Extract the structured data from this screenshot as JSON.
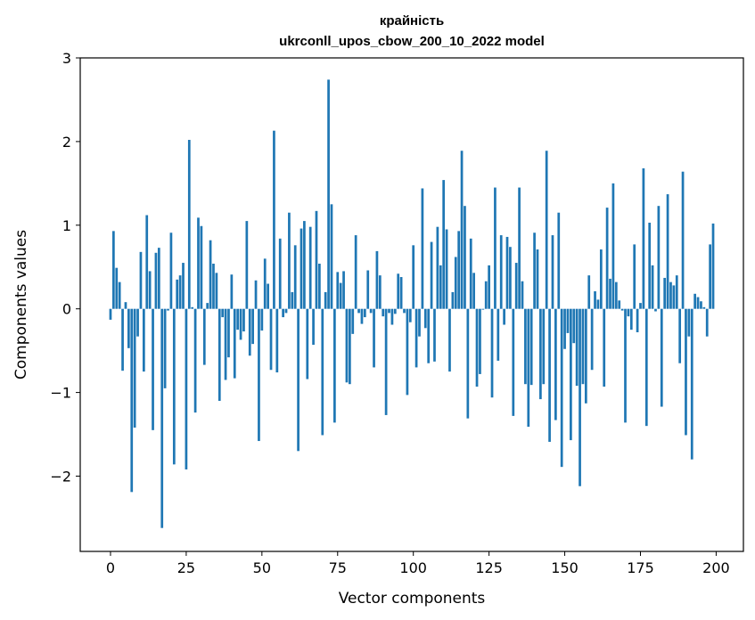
{
  "chart_data": {
    "type": "bar",
    "title": "крайність",
    "subtitle": "ukrconll_upos_cbow_200_10_2022 model",
    "xlabel": "Vector components",
    "ylabel": "Components values",
    "xlim": [
      -10,
      209
    ],
    "ylim": [
      -2.9,
      3.0
    ],
    "xticks": [
      0,
      25,
      50,
      75,
      100,
      125,
      150,
      175,
      200
    ],
    "xtick_labels": [
      "0",
      "25",
      "50",
      "75",
      "100",
      "125",
      "150",
      "175",
      "200"
    ],
    "yticks": [
      -2,
      -1,
      0,
      1,
      2,
      3
    ],
    "ytick_labels": [
      "−2",
      "−1",
      "0",
      "1",
      "2",
      "3"
    ],
    "grid": false,
    "bar_color": "#1f77b4",
    "x": [
      0,
      1,
      2,
      3,
      4,
      5,
      6,
      7,
      8,
      9,
      10,
      11,
      12,
      13,
      14,
      15,
      16,
      17,
      18,
      19,
      20,
      21,
      22,
      23,
      24,
      25,
      26,
      27,
      28,
      29,
      30,
      31,
      32,
      33,
      34,
      35,
      36,
      37,
      38,
      39,
      40,
      41,
      42,
      43,
      44,
      45,
      46,
      47,
      48,
      49,
      50,
      51,
      52,
      53,
      54,
      55,
      56,
      57,
      58,
      59,
      60,
      61,
      62,
      63,
      64,
      65,
      66,
      67,
      68,
      69,
      70,
      71,
      72,
      73,
      74,
      75,
      76,
      77,
      78,
      79,
      80,
      81,
      82,
      83,
      84,
      85,
      86,
      87,
      88,
      89,
      90,
      91,
      92,
      93,
      94,
      95,
      96,
      97,
      98,
      99,
      100,
      101,
      102,
      103,
      104,
      105,
      106,
      107,
      108,
      109,
      110,
      111,
      112,
      113,
      114,
      115,
      116,
      117,
      118,
      119,
      120,
      121,
      122,
      123,
      124,
      125,
      126,
      127,
      128,
      129,
      130,
      131,
      132,
      133,
      134,
      135,
      136,
      137,
      138,
      139,
      140,
      141,
      142,
      143,
      144,
      145,
      146,
      147,
      148,
      149,
      150,
      151,
      152,
      153,
      154,
      155,
      156,
      157,
      158,
      159,
      160,
      161,
      162,
      163,
      164,
      165,
      166,
      167,
      168,
      169,
      170,
      171,
      172,
      173,
      174,
      175,
      176,
      177,
      178,
      179,
      180,
      181,
      182,
      183,
      184,
      185,
      186,
      187,
      188,
      189,
      190,
      191,
      192,
      193,
      194,
      195,
      196,
      197,
      198,
      199
    ],
    "values": [
      -0.13,
      0.93,
      0.49,
      0.32,
      -0.74,
      0.08,
      -0.47,
      -2.19,
      -1.42,
      -0.33,
      0.68,
      -0.75,
      1.12,
      0.45,
      -1.45,
      0.67,
      0.73,
      -2.62,
      -0.95,
      -0.02,
      0.91,
      -1.86,
      0.35,
      0.4,
      0.55,
      -1.92,
      2.02,
      0.02,
      -1.24,
      1.09,
      0.99,
      -0.67,
      0.07,
      0.82,
      0.54,
      0.43,
      -1.1,
      -0.1,
      -0.85,
      -0.58,
      0.41,
      -0.83,
      -0.25,
      -0.37,
      -0.27,
      1.05,
      -0.56,
      -0.42,
      0.34,
      -1.58,
      -0.26,
      0.6,
      0.3,
      -0.73,
      2.13,
      -0.76,
      0.84,
      -0.1,
      -0.05,
      1.15,
      0.2,
      0.76,
      -1.7,
      0.96,
      1.05,
      -0.84,
      0.98,
      -0.43,
      1.17,
      0.54,
      -1.51,
      0.2,
      2.74,
      1.25,
      -1.36,
      0.44,
      0.31,
      0.45,
      -0.88,
      -0.9,
      -0.3,
      0.88,
      -0.05,
      -0.18,
      -0.1,
      0.46,
      -0.05,
      -0.7,
      0.69,
      0.4,
      -0.09,
      -1.27,
      -0.05,
      -0.19,
      -0.06,
      0.42,
      0.38,
      -0.05,
      -1.03,
      -0.16,
      0.76,
      -0.7,
      -0.33,
      1.44,
      -0.23,
      -0.65,
      0.8,
      -0.63,
      0.98,
      0.52,
      1.54,
      0.95,
      -0.75,
      0.2,
      0.62,
      0.93,
      1.89,
      1.23,
      -1.31,
      0.84,
      0.43,
      -0.93,
      -0.78,
      -0.01,
      0.33,
      0.52,
      -1.06,
      1.45,
      -0.62,
      0.88,
      -0.19,
      0.86,
      0.74,
      -1.28,
      0.55,
      1.45,
      0.33,
      -0.9,
      -1.41,
      -0.91,
      0.91,
      0.71,
      -1.08,
      -0.9,
      1.89,
      -1.59,
      0.88,
      -1.33,
      1.15,
      -1.89,
      -0.48,
      -0.29,
      -1.57,
      -0.41,
      -0.92,
      -2.12,
      -0.9,
      -1.13,
      0.4,
      -0.73,
      0.21,
      0.11,
      0.71,
      -0.93,
      1.21,
      0.36,
      1.5,
      0.32,
      0.1,
      -0.02,
      -1.36,
      -0.09,
      -0.25,
      0.77,
      -0.28,
      0.07,
      1.68,
      -1.4,
      1.03,
      0.52,
      -0.03,
      1.23,
      -1.17,
      0.37,
      1.37,
      0.32,
      0.28,
      0.4,
      -0.65,
      1.64,
      -1.51,
      -0.33,
      -1.8,
      0.18,
      0.14,
      0.09,
      0.02,
      -0.33,
      0.77,
      1.02
    ]
  }
}
